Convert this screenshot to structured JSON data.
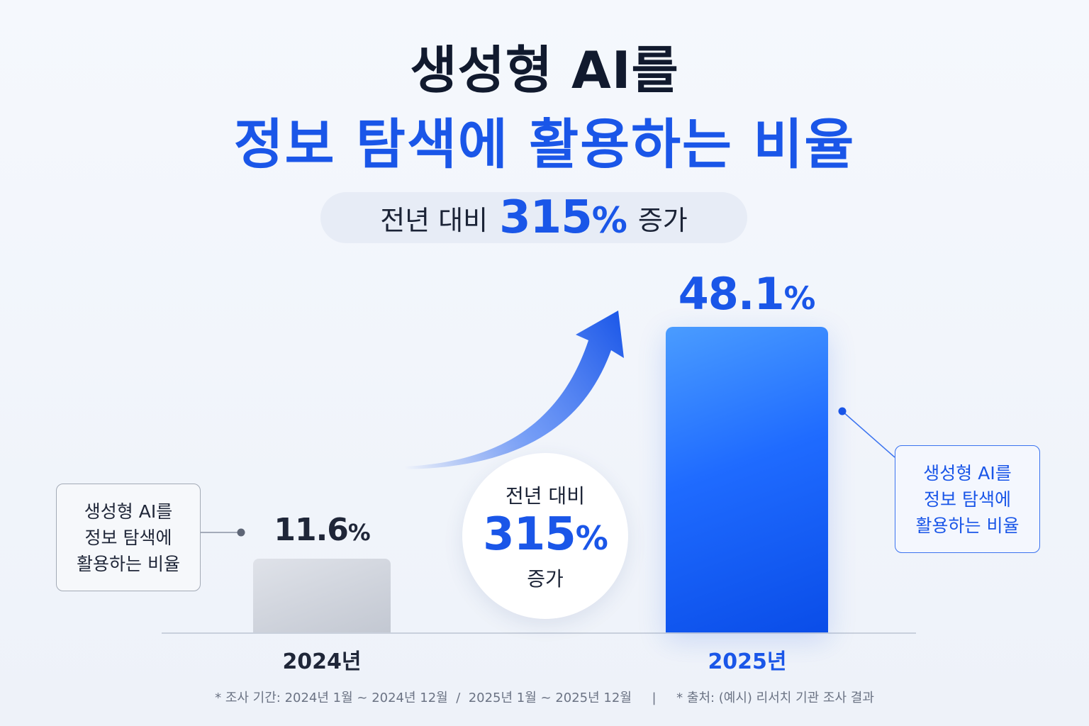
{
  "title_line1": "생성형 AI를",
  "title_line2": "정보 탐색에 활용하는 비율",
  "highlight": {
    "prefix": "전년 대비",
    "value": "315",
    "unit": "%",
    "suffix": "증가"
  },
  "growth_badge": {
    "line1": "전년 대비",
    "value": "315",
    "unit": "%",
    "line3": "증가"
  },
  "callouts": {
    "left": [
      "생성형 AI를",
      "정보 탐색에",
      "활용하는 비율"
    ],
    "right": [
      "생성형 AI를",
      "정보 탐색에",
      "활용하는 비율"
    ]
  },
  "footnote": "* 조사 기간: 2024년 1월 ~ 2024년 12월  /  2025년 1월 ~ 2025년 12월     |     * 출처: (예시) 리서치 기관 조사 결과",
  "colors": {
    "accent": "#1a56e8",
    "bar_2024": "#c8ccd5",
    "bar_2025": "#1f6bff",
    "text": "#141b2d"
  },
  "chart_data": {
    "type": "bar",
    "categories": [
      "2024년",
      "2025년"
    ],
    "values": [
      11.6,
      48.1
    ],
    "value_labels": [
      "11.6",
      "48.1"
    ],
    "unit": "%",
    "title": "생성형 AI를 정보 탐색에 활용하는 비율",
    "xlabel": "",
    "ylabel": "",
    "ylim": [
      0,
      55
    ],
    "grid": false,
    "annotation": "전년 대비 315% 증가"
  }
}
